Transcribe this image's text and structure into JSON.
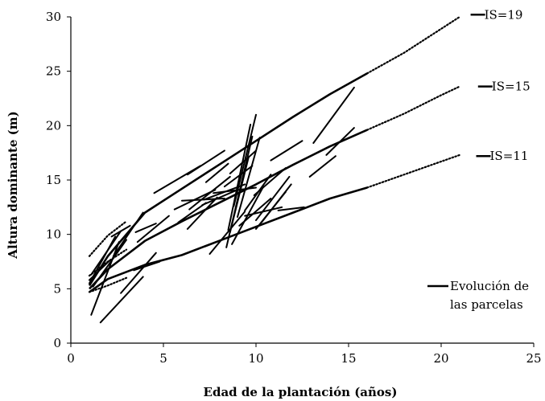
{
  "chart_data": {
    "type": "line",
    "xlabel": "Edad de la plantación (años)",
    "ylabel": "Altura dominante (m)",
    "xlim": [
      0,
      25
    ],
    "ylim": [
      0,
      30
    ],
    "xticks": [
      0,
      5,
      10,
      15,
      20,
      25
    ],
    "yticks": [
      0,
      5,
      10,
      15,
      20,
      25,
      30
    ],
    "grid": false,
    "curves": [
      {
        "name": "IS=19",
        "solid": [
          [
            1,
            5.3
          ],
          [
            2,
            8.0
          ],
          [
            4,
            12.0
          ],
          [
            6,
            14.2
          ],
          [
            8,
            16.4
          ],
          [
            10,
            18.6
          ],
          [
            12,
            20.8
          ],
          [
            14,
            22.9
          ],
          [
            16,
            24.8
          ]
        ],
        "dotted": [
          [
            1,
            8.0
          ],
          [
            2,
            9.9
          ],
          [
            3,
            11.2
          ],
          [
            16,
            24.8
          ],
          [
            18,
            26.7
          ],
          [
            20,
            28.9
          ],
          [
            21,
            30.0
          ]
        ]
      },
      {
        "name": "IS=15",
        "solid": [
          [
            1,
            5.0
          ],
          [
            2,
            6.8
          ],
          [
            4,
            9.4
          ],
          [
            6,
            11.2
          ],
          [
            8,
            12.9
          ],
          [
            10,
            14.6
          ],
          [
            12,
            16.4
          ],
          [
            14,
            18.1
          ],
          [
            16,
            19.6
          ]
        ],
        "dotted": [
          [
            1,
            6.2
          ],
          [
            2,
            7.5
          ],
          [
            3,
            8.6
          ],
          [
            16,
            19.6
          ],
          [
            18,
            21.1
          ],
          [
            20,
            22.8
          ],
          [
            21,
            23.6
          ]
        ]
      },
      {
        "name": "IS=11",
        "solid": [
          [
            1,
            4.7
          ],
          [
            2,
            5.9
          ],
          [
            4,
            7.2
          ],
          [
            6,
            8.1
          ],
          [
            8,
            9.4
          ],
          [
            10,
            10.7
          ],
          [
            12,
            12.0
          ],
          [
            14,
            13.3
          ],
          [
            16,
            14.3
          ]
        ],
        "dotted": [
          [
            1,
            4.7
          ],
          [
            2,
            5.3
          ],
          [
            3,
            6.0
          ],
          [
            16,
            14.3
          ],
          [
            18,
            15.5
          ],
          [
            20,
            16.7
          ],
          [
            21,
            17.3
          ]
        ]
      }
    ],
    "plots": [
      [
        [
          1.1,
          6.3
        ],
        [
          2.7,
          10.3
        ]
      ],
      [
        [
          1.0,
          5.5
        ],
        [
          2.4,
          9.8
        ]
      ],
      [
        [
          1.2,
          5.2
        ],
        [
          3.0,
          9.5
        ]
      ],
      [
        [
          1.0,
          5.8
        ],
        [
          2.1,
          7.6
        ]
      ],
      [
        [
          1.1,
          2.6
        ],
        [
          2.6,
          9.3
        ]
      ],
      [
        [
          1.6,
          1.9
        ],
        [
          3.9,
          6.1
        ]
      ],
      [
        [
          2.7,
          4.6
        ],
        [
          4.6,
          8.3
        ]
      ],
      [
        [
          2.3,
          8.0
        ],
        [
          3.9,
          12.0
        ]
      ],
      [
        [
          2.2,
          9.8
        ],
        [
          3.2,
          10.8
        ]
      ],
      [
        [
          3.5,
          10.2
        ],
        [
          4.6,
          11.0
        ]
      ],
      [
        [
          3.6,
          9.3
        ],
        [
          5.3,
          11.7
        ]
      ],
      [
        [
          3.4,
          6.7
        ],
        [
          4.8,
          7.5
        ]
      ],
      [
        [
          4.5,
          13.8
        ],
        [
          7.0,
          16.3
        ]
      ],
      [
        [
          6.3,
          15.5
        ],
        [
          8.3,
          17.7
        ]
      ],
      [
        [
          5.6,
          12.3
        ],
        [
          7.8,
          14.1
        ]
      ],
      [
        [
          5.8,
          11.1
        ],
        [
          7.3,
          12.9
        ]
      ],
      [
        [
          6.0,
          13.1
        ],
        [
          8.3,
          13.3
        ]
      ],
      [
        [
          6.4,
          12.3
        ],
        [
          8.6,
          15.3
        ]
      ],
      [
        [
          6.3,
          10.5
        ],
        [
          7.9,
          13.4
        ]
      ],
      [
        [
          7.2,
          13.2
        ],
        [
          9.4,
          14.6
        ]
      ],
      [
        [
          7.1,
          12.7
        ],
        [
          9.0,
          14.1
        ]
      ],
      [
        [
          7.5,
          8.2
        ],
        [
          9.4,
          12.1
        ]
      ],
      [
        [
          7.3,
          14.8
        ],
        [
          8.5,
          16.5
        ]
      ],
      [
        [
          8.4,
          8.8
        ],
        [
          9.8,
          19.0
        ]
      ],
      [
        [
          8.5,
          10.4
        ],
        [
          9.7,
          20.1
        ]
      ],
      [
        [
          8.8,
          12.6
        ],
        [
          10.0,
          21.0
        ]
      ],
      [
        [
          8.6,
          10.2
        ],
        [
          9.6,
          17.1
        ]
      ],
      [
        [
          9.0,
          11.6
        ],
        [
          10.2,
          18.9
        ]
      ],
      [
        [
          8.6,
          15.6
        ],
        [
          10.0,
          17.7
        ]
      ],
      [
        [
          8.3,
          14.4
        ],
        [
          9.8,
          16.3
        ]
      ],
      [
        [
          8.7,
          9.1
        ],
        [
          10.4,
          14.4
        ]
      ],
      [
        [
          9.1,
          10.8
        ],
        [
          10.8,
          13.3
        ]
      ],
      [
        [
          9.4,
          12.2
        ],
        [
          10.8,
          15.5
        ]
      ],
      [
        [
          9.4,
          11.7
        ],
        [
          11.4,
          12.5
        ]
      ],
      [
        [
          9.9,
          13.6
        ],
        [
          11.6,
          16.1
        ]
      ],
      [
        [
          10.0,
          11.3
        ],
        [
          11.8,
          15.3
        ]
      ],
      [
        [
          10.0,
          10.5
        ],
        [
          11.6,
          13.9
        ]
      ],
      [
        [
          10.3,
          11.1
        ],
        [
          11.9,
          14.6
        ]
      ],
      [
        [
          11.2,
          12.2
        ],
        [
          12.6,
          12.5
        ]
      ],
      [
        [
          10.8,
          16.8
        ],
        [
          12.5,
          18.6
        ]
      ],
      [
        [
          12.9,
          15.3
        ],
        [
          14.3,
          17.2
        ]
      ],
      [
        [
          13.1,
          18.4
        ],
        [
          15.3,
          23.5
        ]
      ],
      [
        [
          13.8,
          17.3
        ],
        [
          15.3,
          19.8
        ]
      ],
      [
        [
          7.7,
          13.8
        ],
        [
          10.0,
          14.3
        ]
      ]
    ],
    "labels": [
      {
        "text": "IS=19",
        "x": 22.2,
        "y": 30.2
      },
      {
        "text": "IS=15",
        "x": 22.6,
        "y": 23.6
      },
      {
        "text": "IS=11",
        "x": 22.5,
        "y": 17.2
      }
    ],
    "legend": {
      "position": "bottom-right",
      "line1": "Evolución de",
      "line2": "las parcelas"
    }
  }
}
